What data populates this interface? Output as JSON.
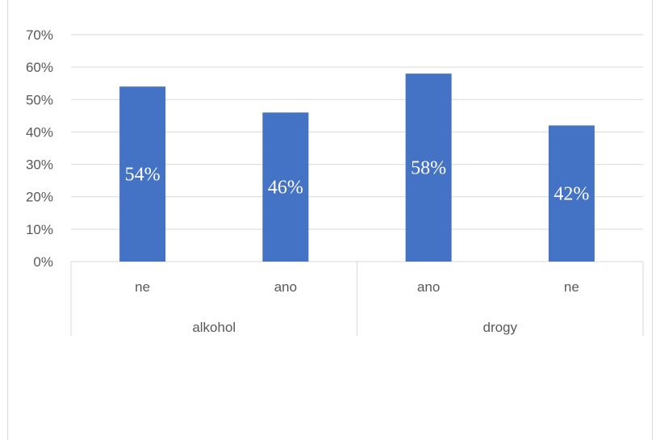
{
  "chart_data": {
    "type": "bar",
    "title": "",
    "xlabel": "",
    "ylabel": "",
    "ylim": [
      0,
      0.7
    ],
    "y_ticks": [
      "0%",
      "10%",
      "20%",
      "30%",
      "40%",
      "50%",
      "60%",
      "70%"
    ],
    "y_tick_values": [
      0,
      0.1,
      0.2,
      0.3,
      0.4,
      0.5,
      0.6,
      0.7
    ],
    "grid": true,
    "groups": [
      "alkohol",
      "drogy"
    ],
    "categories": [
      "ne",
      "ano",
      "ano",
      "ne"
    ],
    "category_groups": [
      "alkohol",
      "alkohol",
      "drogy",
      "drogy"
    ],
    "values": [
      0.54,
      0.46,
      0.58,
      0.42
    ],
    "data_labels": [
      "54%",
      "46%",
      "58%",
      "42%"
    ],
    "bar_color": "#4472c4"
  }
}
